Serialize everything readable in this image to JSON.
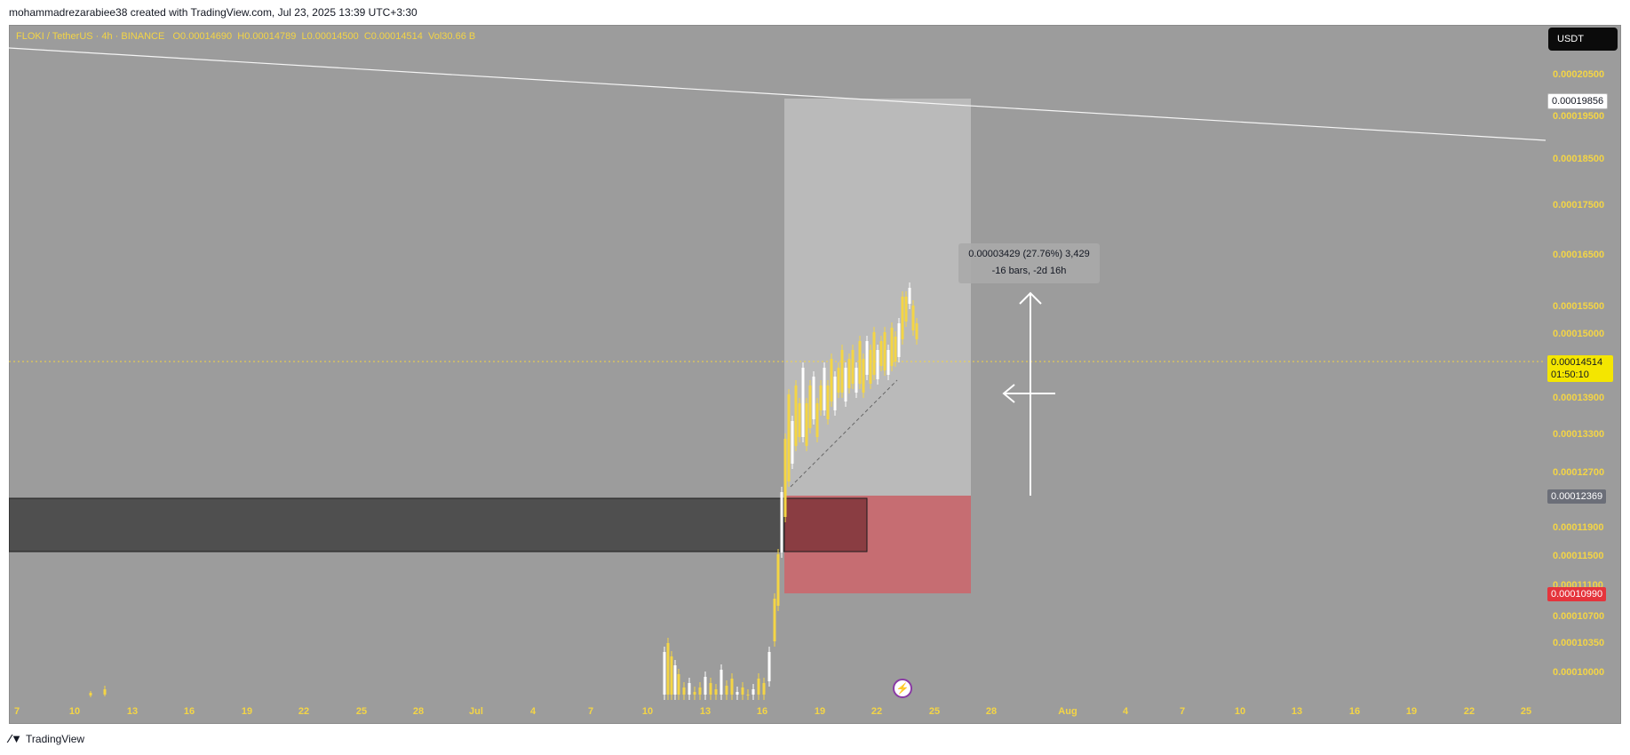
{
  "header": {
    "credit": "mohammadrezarabiee38 created with TradingView.com, Jul 23, 2025 13:39 UTC+3:30"
  },
  "legend": {
    "symbol": "FLOKI / TetherUS · 4h · BINANCE",
    "open": "O0.00014690",
    "high": "H0.00014789",
    "low": "L0.00014500",
    "close": "C0.00014514",
    "volume": "Vol30.66 B"
  },
  "currency_button": "USDT",
  "price_axis": {
    "ticks": [
      "0.00020500",
      "0.00019500",
      "0.00018500",
      "0.00017500",
      "0.00016500",
      "0.00015500",
      "0.00015000",
      "0.00013900",
      "0.00013300",
      "0.00012700",
      "0.00011900",
      "0.00011500",
      "0.00011100",
      "0.00010700",
      "0.00010350",
      "0.00010000"
    ],
    "target_price": "0.00019856",
    "current_price": "0.00014514",
    "countdown": "01:50:10",
    "entry_price": "0.00012369",
    "stop_price": "0.00010990"
  },
  "time_axis": {
    "labels": [
      "7",
      "10",
      "13",
      "16",
      "19",
      "22",
      "25",
      "28",
      "Jul",
      "4",
      "7",
      "10",
      "13",
      "16",
      "19",
      "22",
      "25",
      "28",
      "Aug",
      "4",
      "7",
      "10",
      "13",
      "16",
      "19",
      "22",
      "25"
    ]
  },
  "measure_tooltip": {
    "line1": "0.00003429 (27.76%) 3,429",
    "line2": "-16 bars, -2d 16h"
  },
  "colors": {
    "background": "#9c9c9c",
    "accent_yellow": "#f4d545",
    "stop_zone": "#c86a70",
    "target_zone": "#c4c4c4",
    "demand_zone": "#4f4f4f"
  },
  "footer": {
    "brand": "TradingView"
  }
}
